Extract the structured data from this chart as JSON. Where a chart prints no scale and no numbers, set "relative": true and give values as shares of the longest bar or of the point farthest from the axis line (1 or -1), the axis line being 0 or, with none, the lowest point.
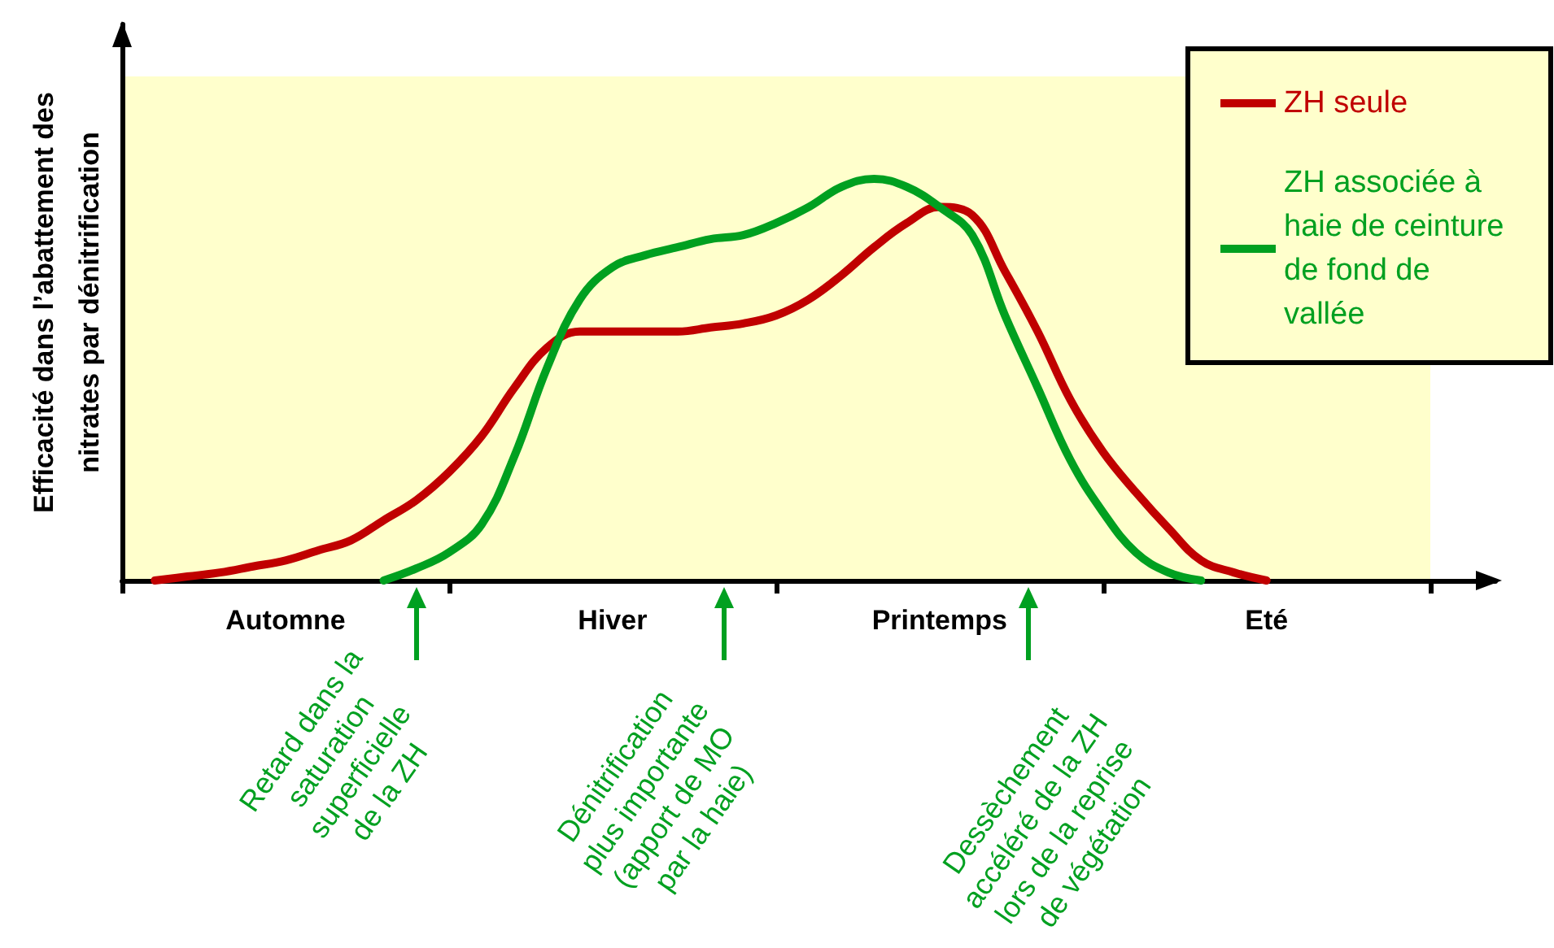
{
  "chart_data": {
    "type": "line",
    "relative": true,
    "ylabel": "Efficacité dans l’abattement des nitrates par dénitrification",
    "categories": [
      null,
      null,
      null,
      null,
      null,
      "Automne",
      null,
      null,
      null,
      null,
      null,
      null,
      null,
      null,
      null,
      "Hiver",
      null,
      null,
      null,
      null,
      null,
      null,
      null,
      null,
      null,
      "Printemps",
      null,
      null,
      null,
      null,
      null,
      null,
      null,
      null,
      null,
      "Eté",
      null,
      null,
      null,
      null,
      null,
      null,
      null
    ],
    "series": [
      {
        "name": "ZH seule",
        "color": "#c00000",
        "values": [
          null,
          0,
          0.01,
          0.02,
          0.035,
          0.05,
          0.075,
          0.1,
          0.15,
          0.2,
          0.27,
          0.36,
          0.48,
          0.58,
          0.62,
          0.62,
          0.62,
          0.62,
          0.63,
          0.64,
          0.66,
          0.7,
          0.76,
          0.83,
          0.89,
          0.93,
          0.91,
          0.77,
          0.62,
          0.45,
          0.32,
          0.22,
          0.13,
          0.05,
          0.02,
          0,
          null,
          null,
          null,
          null,
          null,
          null,
          null
        ]
      },
      {
        "name": "ZH associée à haie de ceinture de fond de vallée",
        "color": "#00a020",
        "values": [
          null,
          null,
          null,
          null,
          null,
          null,
          null,
          null,
          0,
          0.03,
          0.07,
          0.14,
          0.31,
          0.53,
          0.7,
          0.78,
          0.81,
          0.83,
          0.85,
          0.86,
          0.89,
          0.93,
          0.98,
          1,
          0.98,
          0.93,
          0.86,
          0.66,
          0.48,
          0.3,
          0.17,
          0.07,
          0.02,
          0,
          null,
          null,
          null,
          null,
          null,
          null,
          null,
          null,
          null
        ]
      }
    ],
    "annotations": [
      "Retard dans la\nsaturation\nsuperficielle\nde la ZH",
      "Dénitrification\nplus importante\n(apport de MO\npar la haie)",
      "Dessèchement\naccéléré de la ZH\nlors de la reprise\nde végétation"
    ],
    "legend": "top right",
    "marker": "none",
    "line_style": "solid",
    "grid": false
  }
}
